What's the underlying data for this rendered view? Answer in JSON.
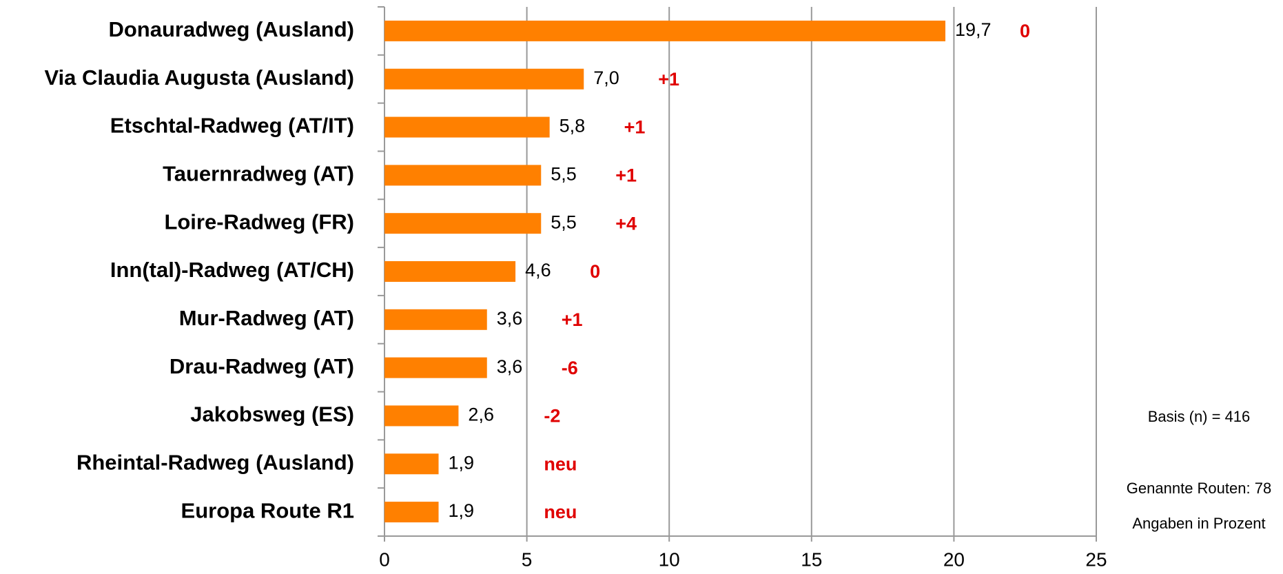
{
  "chart_data": {
    "type": "bar",
    "orientation": "horizontal",
    "categories": [
      "Donauradweg (Ausland)",
      "Via Claudia Augusta (Ausland)",
      "Etschtal-Radweg (AT/IT)",
      "Tauernradweg (AT)",
      "Loire-Radweg (FR)",
      "Inn(tal)-Radweg (AT/CH)",
      "Mur-Radweg (AT)",
      "Drau-Radweg (AT)",
      "Jakobsweg (ES)",
      "Rheintal-Radweg (Ausland)",
      "Europa Route R1"
    ],
    "values": [
      19.7,
      7.0,
      5.8,
      5.5,
      5.5,
      4.6,
      3.6,
      3.6,
      2.6,
      1.9,
      1.9
    ],
    "value_labels": [
      "19,7",
      "7,0",
      "5,8",
      "5,5",
      "5,5",
      "4,6",
      "3,6",
      "3,6",
      "2,6",
      "1,9",
      "1,9"
    ],
    "changes": [
      "0",
      "+1",
      "+1",
      "+1",
      "+4",
      "0",
      "+1",
      "-6",
      "-2",
      "neu",
      "neu"
    ],
    "color": "#ff8000",
    "change_color": "#e00000",
    "xlim": [
      0,
      25
    ],
    "xticks": [
      0,
      5,
      10,
      15,
      20,
      25
    ],
    "grid": true,
    "notes": [
      "Basis (n) = 416",
      "Genannte Routen: 78",
      "Angaben in Prozent"
    ]
  }
}
